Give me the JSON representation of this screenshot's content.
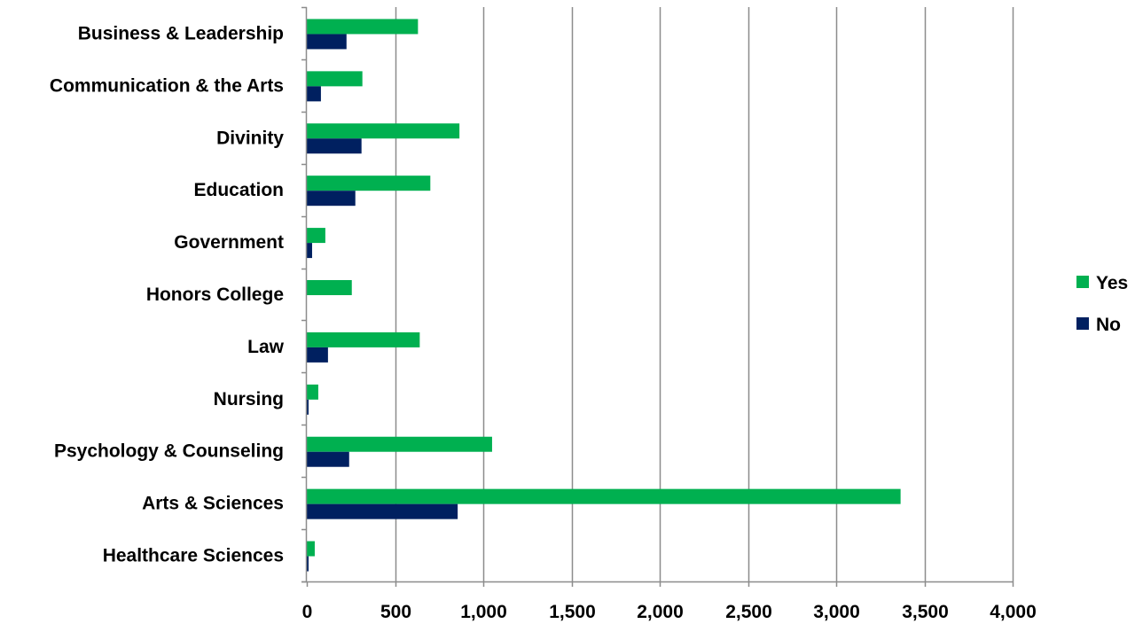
{
  "chart_data": {
    "type": "bar",
    "orientation": "horizontal",
    "categories": [
      "Business & Leadership",
      "Communication & the Arts",
      "Divinity",
      "Education",
      "Government",
      "Honors College",
      "Law",
      "Nursing",
      "Psychology & Counseling",
      "Arts & Sciences",
      "Healthcare Sciences"
    ],
    "series": [
      {
        "name": "Yes",
        "color": "#00B050",
        "values": [
          630,
          315,
          865,
          700,
          105,
          255,
          640,
          65,
          1050,
          3365,
          45
        ]
      },
      {
        "name": "No",
        "color": "#002060",
        "values": [
          225,
          80,
          310,
          275,
          30,
          0,
          120,
          10,
          240,
          855,
          10
        ]
      }
    ],
    "xlim": [
      0,
      4000
    ],
    "xticks": [
      0,
      500,
      1000,
      1500,
      2000,
      2500,
      3000,
      3500,
      4000
    ],
    "xtick_labels": [
      "0",
      "500",
      "1,000",
      "1,500",
      "2,000",
      "2,500",
      "3,000",
      "3,500",
      "4,000"
    ],
    "grid": "vertical",
    "legend_position": "right",
    "title": "",
    "xlabel": "",
    "ylabel": ""
  }
}
